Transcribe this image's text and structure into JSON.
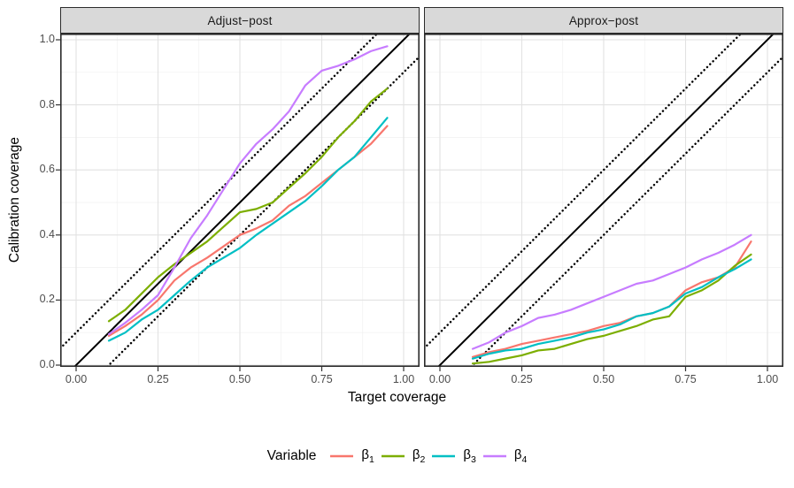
{
  "chart_data": {
    "type": "line",
    "x_label": "Target coverage",
    "y_label": "Calibration coverage",
    "xlim": [
      0,
      1
    ],
    "ylim": [
      0,
      1
    ],
    "grid": "on",
    "legend_position": "bottom",
    "x_ticks": {
      "values": [
        0,
        0.25,
        0.5,
        0.75,
        1.0
      ],
      "labels": [
        "0.00",
        "0.25",
        "0.50",
        "0.75",
        "1.00"
      ]
    },
    "y_ticks": {
      "values": [
        0,
        0.2,
        0.4,
        0.6,
        0.8,
        1.0
      ],
      "labels": [
        "0.0",
        "0.2",
        "0.4",
        "0.6",
        "0.8",
        "1.0"
      ]
    },
    "x_minor": [
      0.125,
      0.375,
      0.625,
      0.875
    ],
    "y_minor": [
      0.1,
      0.3,
      0.5,
      0.7,
      0.9
    ],
    "reference_lines": [
      {
        "slope": 1,
        "intercept": 0,
        "style": "solid"
      },
      {
        "slope": 1,
        "intercept": 0.1,
        "style": "dotted"
      },
      {
        "slope": 1,
        "intercept": -0.1,
        "style": "dotted"
      }
    ],
    "x": [
      0.1,
      0.15,
      0.2,
      0.25,
      0.3,
      0.35,
      0.4,
      0.45,
      0.5,
      0.55,
      0.6,
      0.65,
      0.7,
      0.75,
      0.8,
      0.85,
      0.9,
      0.95
    ],
    "facets": [
      {
        "title": "Adjust−post",
        "series": [
          {
            "name": "beta-1",
            "color": "#F8766D",
            "values": [
              0.09,
              0.12,
              0.155,
              0.2,
              0.26,
              0.3,
              0.33,
              0.365,
              0.4,
              0.42,
              0.445,
              0.49,
              0.52,
              0.56,
              0.6,
              0.64,
              0.68,
              0.735
            ]
          },
          {
            "name": "beta-2",
            "color": "#7CAE00",
            "values": [
              0.135,
              0.17,
              0.22,
              0.27,
              0.31,
              0.345,
              0.38,
              0.425,
              0.47,
              0.48,
              0.5,
              0.545,
              0.59,
              0.64,
              0.7,
              0.75,
              0.81,
              0.85
            ]
          },
          {
            "name": "beta-3",
            "color": "#00BFC4",
            "values": [
              0.075,
              0.1,
              0.14,
              0.17,
              0.215,
              0.26,
              0.3,
              0.33,
              0.36,
              0.4,
              0.435,
              0.47,
              0.505,
              0.55,
              0.6,
              0.64,
              0.7,
              0.76
            ]
          },
          {
            "name": "beta-4",
            "color": "#C77CFF",
            "values": [
              0.095,
              0.13,
              0.17,
              0.215,
              0.3,
              0.39,
              0.46,
              0.54,
              0.62,
              0.68,
              0.725,
              0.78,
              0.86,
              0.905,
              0.92,
              0.94,
              0.965,
              0.98
            ]
          }
        ]
      },
      {
        "title": "Approx−post",
        "series": [
          {
            "name": "beta-1",
            "color": "#F8766D",
            "values": [
              0.025,
              0.04,
              0.05,
              0.065,
              0.075,
              0.085,
              0.095,
              0.105,
              0.12,
              0.13,
              0.15,
              0.16,
              0.18,
              0.23,
              0.255,
              0.27,
              0.3,
              0.38
            ]
          },
          {
            "name": "beta-2",
            "color": "#7CAE00",
            "values": [
              0.005,
              0.01,
              0.02,
              0.03,
              0.045,
              0.05,
              0.065,
              0.08,
              0.09,
              0.105,
              0.12,
              0.14,
              0.15,
              0.21,
              0.23,
              0.26,
              0.305,
              0.34
            ]
          },
          {
            "name": "beta-3",
            "color": "#00BFC4",
            "values": [
              0.02,
              0.035,
              0.045,
              0.05,
              0.065,
              0.075,
              0.085,
              0.1,
              0.11,
              0.125,
              0.15,
              0.16,
              0.18,
              0.22,
              0.24,
              0.27,
              0.295,
              0.325
            ]
          },
          {
            "name": "beta-4",
            "color": "#C77CFF",
            "values": [
              0.05,
              0.07,
              0.1,
              0.12,
              0.145,
              0.155,
              0.17,
              0.19,
              0.21,
              0.23,
              0.25,
              0.26,
              0.28,
              0.3,
              0.325,
              0.345,
              0.37,
              0.4
            ]
          }
        ]
      }
    ],
    "legend": {
      "title": "Variable",
      "entries": [
        {
          "label": "β",
          "sub": "1",
          "color": "#F8766D"
        },
        {
          "label": "β",
          "sub": "2",
          "color": "#7CAE00"
        },
        {
          "label": "β",
          "sub": "3",
          "color": "#00BFC4"
        },
        {
          "label": "β",
          "sub": "4",
          "color": "#C77CFF"
        }
      ]
    }
  },
  "colors": {
    "strip_background": "#d9d9d9",
    "panel_border": "#2b2b2b",
    "grid_major": "#e2e2e2",
    "grid_minor": "#f0f0f0",
    "tick_label": "#4d4d4d",
    "reference_line": "#000000"
  }
}
